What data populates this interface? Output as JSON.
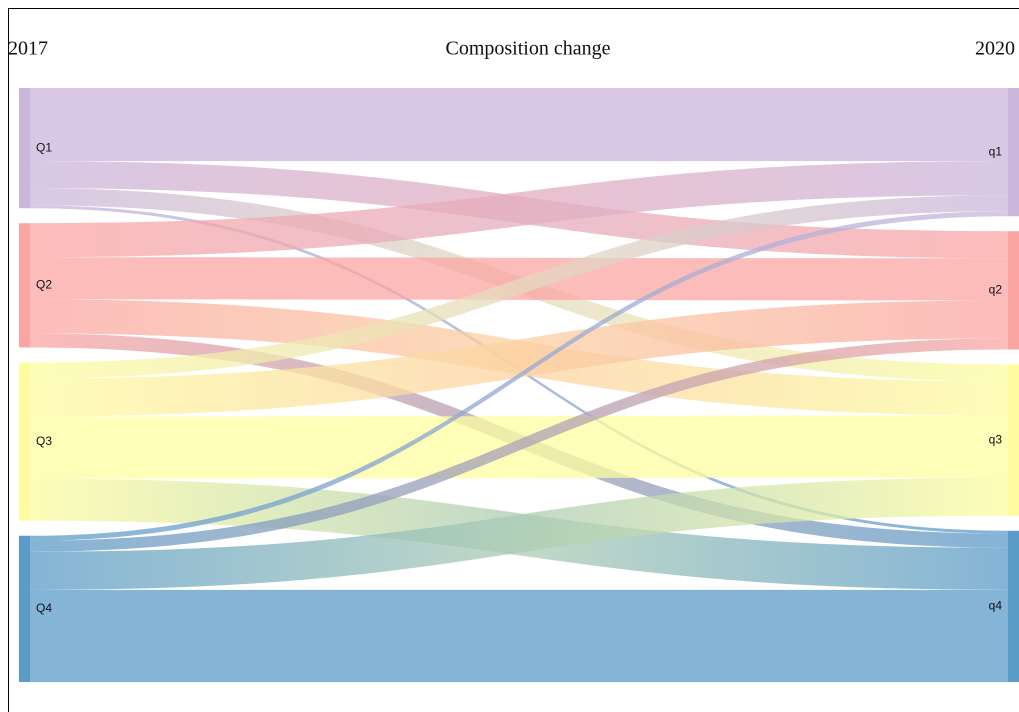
{
  "chart_data": {
    "type": "sankey",
    "title": "Composition change",
    "left_label": "2017",
    "right_label": "2020",
    "left_nodes": [
      {
        "name": "Q1",
        "color": "#cbb6dc"
      },
      {
        "name": "Q2",
        "color": "#fba5a3"
      },
      {
        "name": "Q3",
        "color": "#fdfda0"
      },
      {
        "name": "Q4",
        "color": "#5b9bc8"
      }
    ],
    "right_nodes": [
      {
        "name": "q1",
        "color": "#cbb6dc"
      },
      {
        "name": "q2",
        "color": "#fba5a3"
      },
      {
        "name": "q3",
        "color": "#fdfda0"
      },
      {
        "name": "q4",
        "color": "#5b9bc8"
      }
    ],
    "links": [
      {
        "source": 0,
        "target": 0,
        "value": 73
      },
      {
        "source": 0,
        "target": 1,
        "value": 27
      },
      {
        "source": 0,
        "target": 2,
        "value": 17
      },
      {
        "source": 0,
        "target": 3,
        "value": 3
      },
      {
        "source": 1,
        "target": 0,
        "value": 34
      },
      {
        "source": 1,
        "target": 1,
        "value": 42
      },
      {
        "source": 1,
        "target": 2,
        "value": 34
      },
      {
        "source": 1,
        "target": 3,
        "value": 14
      },
      {
        "source": 2,
        "target": 0,
        "value": 16
      },
      {
        "source": 2,
        "target": 1,
        "value": 38
      },
      {
        "source": 2,
        "target": 2,
        "value": 62
      },
      {
        "source": 2,
        "target": 3,
        "value": 42
      },
      {
        "source": 3,
        "target": 0,
        "value": 5
      },
      {
        "source": 3,
        "target": 1,
        "value": 11
      },
      {
        "source": 3,
        "target": 2,
        "value": 38
      },
      {
        "source": 3,
        "target": 3,
        "value": 92
      }
    ]
  }
}
